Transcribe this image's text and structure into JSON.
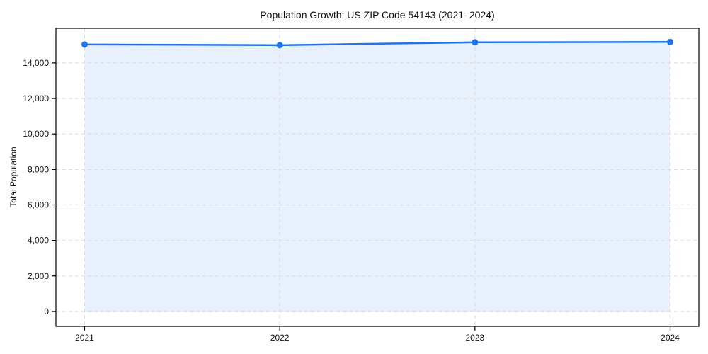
{
  "chart_data": {
    "type": "area",
    "title": "Population Growth: US ZIP Code 54143 (2021–2024)",
    "xlabel": "",
    "ylabel": "Total Population",
    "categories": [
      "2021",
      "2022",
      "2023",
      "2024"
    ],
    "series": [
      {
        "name": "Total Population",
        "values": [
          15040,
          15000,
          15160,
          15180
        ]
      }
    ],
    "ylim": [
      -840,
      15950
    ],
    "yticks": [
      0,
      2000,
      4000,
      6000,
      8000,
      10000,
      12000,
      14000
    ],
    "ytick_labels": [
      "0",
      "2,000",
      "4,000",
      "6,000",
      "8,000",
      "10,000",
      "12,000",
      "14,000"
    ],
    "grid": true,
    "grid_style": "dashed",
    "legend_position": "none",
    "colors": {
      "line": "#2273e6",
      "marker": "#2273e6",
      "fill": "#e8f0fc",
      "grid": "#dadada",
      "spine": "#000000",
      "text": "#111111",
      "background": "#ffffff"
    }
  }
}
